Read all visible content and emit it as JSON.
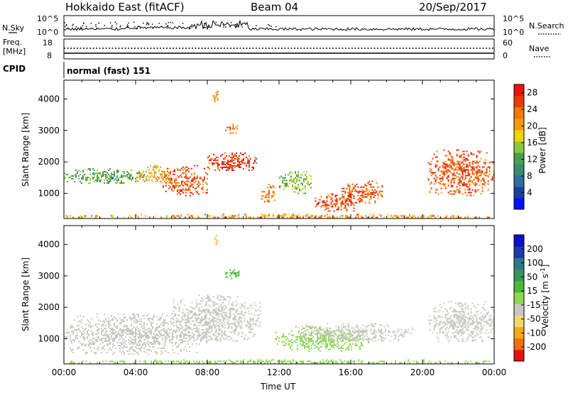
{
  "header": {
    "station": "Hokkaido East (fitACF)",
    "beam": "Beam 04",
    "date": "20/Sep/2017"
  },
  "noise_panel": {
    "left_label": "N.Sky",
    "right_label": "N.Search",
    "ticks": [
      "10^5",
      "10^0"
    ]
  },
  "freq_panel": {
    "left_label_1": "Freq.",
    "left_label_2": "[MHz]",
    "left_ticks": [
      "18",
      "8"
    ],
    "right_label": "Nave",
    "right_ticks": [
      "60",
      "0"
    ]
  },
  "cpid_panel": {
    "label": "CPID",
    "value": "normal (fast) 151"
  },
  "colors": {
    "power": [
      "#0010ff",
      "#1e3fa0",
      "#2f6e9e",
      "#3a8c6e",
      "#4aa050",
      "#8cc83c",
      "#f0d20a",
      "#f59a0a",
      "#f07a05",
      "#ea3a0a",
      "#e8140a"
    ],
    "velocity": [
      "#e41010",
      "#f07010",
      "#f5a818",
      "#f0d870",
      "#c8c8c0",
      "#8cd850",
      "#4ab838",
      "#38955c",
      "#2a7a8c",
      "#2038a8",
      "#1010c8"
    ]
  },
  "chart_data": [
    {
      "type": "heatmap",
      "name": "power",
      "ylabel": "Slant Range [km]",
      "yticks": [
        "4000",
        "3000",
        "2000",
        "1000"
      ],
      "ylim": [
        200,
        4600
      ],
      "xticks": [
        "00:00",
        "04:00",
        "08:00",
        "12:00",
        "16:00",
        "20:00",
        "00:00"
      ],
      "xlim": [
        0,
        24
      ],
      "colorbar": {
        "label": "Power [dB]",
        "ticks": [
          "28",
          "24",
          "20",
          "16",
          "12",
          "8",
          "4"
        ],
        "range": [
          0,
          30
        ]
      },
      "regions": [
        {
          "t0": 0.0,
          "t1": 4.5,
          "r0": 1300,
          "r1": 1800,
          "value": 12
        },
        {
          "t0": 4.0,
          "t1": 6.0,
          "r0": 1300,
          "r1": 1900,
          "value": 20
        },
        {
          "t0": 5.5,
          "t1": 8.0,
          "r0": 900,
          "r1": 1900,
          "value": 26
        },
        {
          "t0": 8.0,
          "t1": 10.8,
          "r0": 1700,
          "r1": 2300,
          "value": 28
        },
        {
          "t0": 8.3,
          "t1": 8.6,
          "r0": 3900,
          "r1": 4300,
          "value": 22
        },
        {
          "t0": 9.0,
          "t1": 9.7,
          "r0": 2900,
          "r1": 3300,
          "value": 26
        },
        {
          "t0": 11.0,
          "t1": 11.8,
          "r0": 700,
          "r1": 1300,
          "value": 24
        },
        {
          "t0": 12.0,
          "t1": 13.8,
          "r0": 1000,
          "r1": 1700,
          "value": 14
        },
        {
          "t0": 14.0,
          "t1": 16.5,
          "r0": 400,
          "r1": 1000,
          "value": 28
        },
        {
          "t0": 15.5,
          "t1": 17.8,
          "r0": 700,
          "r1": 1400,
          "value": 26
        },
        {
          "t0": 20.3,
          "t1": 24.0,
          "r0": 900,
          "r1": 2400,
          "value": 26
        },
        {
          "t0": 0.0,
          "t1": 24.0,
          "r0": 200,
          "r1": 350,
          "value": 22
        }
      ]
    },
    {
      "type": "heatmap",
      "name": "velocity",
      "ylabel": "Slant Range [km]",
      "yticks": [
        "4000",
        "3000",
        "2000",
        "1000"
      ],
      "ylim": [
        200,
        4600
      ],
      "xticks": [
        "00:00",
        "04:00",
        "08:00",
        "12:00",
        "16:00",
        "20:00",
        "00:00"
      ],
      "xlim": [
        0,
        24
      ],
      "xlabel": "Time UT",
      "colorbar": {
        "label": "Velocity [m s^-1]",
        "ticks": [
          "200",
          "100",
          "50",
          "15",
          "-15",
          "-50",
          "-100",
          "-200"
        ]
      },
      "regions": [
        {
          "t0": 0.0,
          "t1": 8.0,
          "r0": 500,
          "r1": 1800,
          "value": 0
        },
        {
          "t0": 6.0,
          "t1": 11.0,
          "r0": 900,
          "r1": 2400,
          "value": 0
        },
        {
          "t0": 8.3,
          "t1": 8.6,
          "r0": 3900,
          "r1": 4300,
          "value": -60
        },
        {
          "t0": 9.0,
          "t1": 9.8,
          "r0": 2900,
          "r1": 3300,
          "value": 80
        },
        {
          "t0": 11.8,
          "t1": 17.0,
          "r0": 600,
          "r1": 1400,
          "value": 25
        },
        {
          "t0": 13.0,
          "t1": 19.5,
          "r0": 900,
          "r1": 1500,
          "value": 0
        },
        {
          "t0": 20.3,
          "t1": 24.0,
          "r0": 900,
          "r1": 2200,
          "value": 0
        },
        {
          "t0": 0.0,
          "t1": 24.0,
          "r0": 200,
          "r1": 350,
          "value": 30
        }
      ]
    }
  ]
}
